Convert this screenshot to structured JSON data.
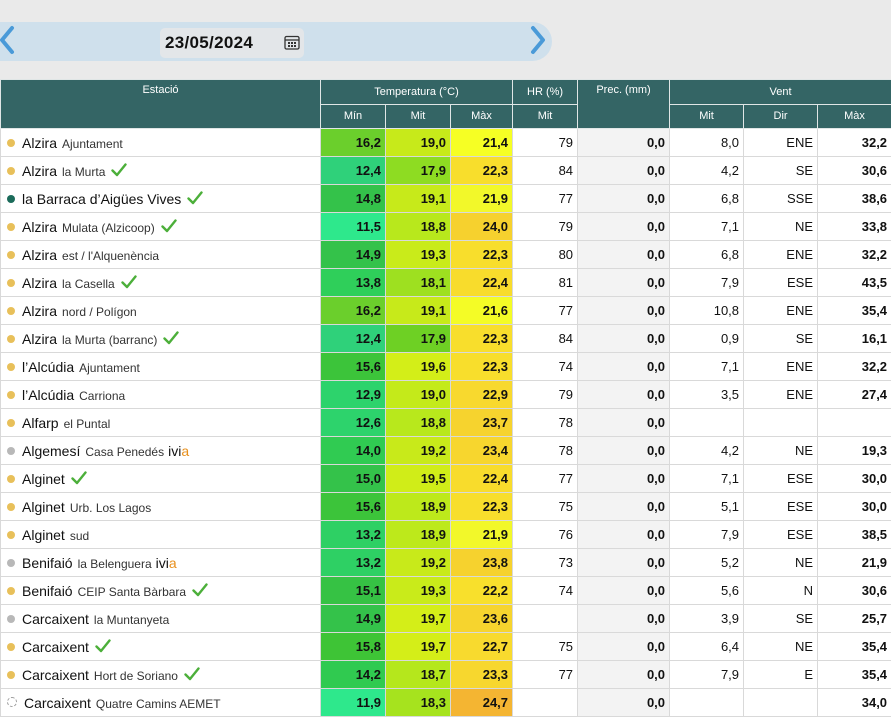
{
  "toolbar": {
    "date": "23/05/2024",
    "prev_icon": "chevron-left-icon",
    "next_icon": "chevron-right-icon",
    "calendar_icon": "calendar-icon"
  },
  "table": {
    "headers_top": {
      "station": "Estació",
      "temperature": "Temperatura (°C)",
      "humidity": "HR (%)",
      "precip": "Prec. (mm)",
      "wind": "Vent"
    },
    "headers_sub": {
      "t_min": "Mín",
      "t_mit": "Mit",
      "t_max": "Màx",
      "hr_mit": "Mit",
      "w_mit": "Mit",
      "w_dir": "Dir",
      "w_max": "Màx"
    },
    "rows": [
      {
        "name": "Alzira",
        "sub": "Ajuntament",
        "dot": "#e8c05a",
        "check": false,
        "ivia": false,
        "tmin": "16,2",
        "tmit": "19,0",
        "tmax": "21,4",
        "hr": "79",
        "prec": "0,0",
        "wmit": "8,0",
        "wdir": "ENE",
        "wmax": "32,2",
        "cmin": "#6bcf2c",
        "cmit": "#c7ea1a",
        "cmax": "#f6ff24"
      },
      {
        "name": "Alzira",
        "sub": "la Murta",
        "dot": "#e8c05a",
        "check": true,
        "ivia": false,
        "tmin": "12,4",
        "tmit": "17,9",
        "tmax": "22,3",
        "hr": "84",
        "prec": "0,0",
        "wmit": "4,2",
        "wdir": "SE",
        "wmax": "30,6",
        "cmin": "#2fd17a",
        "cmit": "#8edc22",
        "cmax": "#f8de2c"
      },
      {
        "name": "la Barraca d’Aigües Vives",
        "sub": "",
        "dot": "#1b6b5a",
        "check": true,
        "ivia": false,
        "tmin": "14,8",
        "tmit": "19,1",
        "tmax": "21,9",
        "hr": "77",
        "prec": "0,0",
        "wmit": "6,8",
        "wdir": "SSE",
        "wmax": "38,6",
        "cmin": "#34c24a",
        "cmit": "#c7ea1a",
        "cmax": "#f2f82a"
      },
      {
        "name": "Alzira",
        "sub": "Mulata (Alzicoop)",
        "dot": "#e8c05a",
        "check": true,
        "ivia": false,
        "tmin": "11,5",
        "tmit": "18,8",
        "tmax": "24,0",
        "hr": "79",
        "prec": "0,0",
        "wmit": "7,1",
        "wdir": "NE",
        "wmax": "33,8",
        "cmin": "#2ee88c",
        "cmit": "#b8e81c",
        "cmax": "#f6d12e"
      },
      {
        "name": "Alzira",
        "sub": "est / l'Alquenència",
        "dot": "#e8c05a",
        "check": false,
        "ivia": false,
        "tmin": "14,9",
        "tmit": "19,3",
        "tmax": "22,3",
        "hr": "80",
        "prec": "0,0",
        "wmit": "6,8",
        "wdir": "ENE",
        "wmax": "32,2",
        "cmin": "#34c24a",
        "cmit": "#c9eb1a",
        "cmax": "#f8de2c"
      },
      {
        "name": "Alzira",
        "sub": "la Casella",
        "dot": "#e8c05a",
        "check": true,
        "ivia": false,
        "tmin": "13,8",
        "tmit": "18,1",
        "tmax": "22,4",
        "hr": "81",
        "prec": "0,0",
        "wmit": "7,9",
        "wdir": "ESE",
        "wmax": "43,5",
        "cmin": "#2fcf5a",
        "cmit": "#9ee020",
        "cmax": "#f8dc2c"
      },
      {
        "name": "Alzira",
        "sub": "nord / Polígon",
        "dot": "#e8c05a",
        "check": false,
        "ivia": false,
        "tmin": "16,2",
        "tmit": "19,1",
        "tmax": "21,6",
        "hr": "77",
        "prec": "0,0",
        "wmit": "10,8",
        "wdir": "ENE",
        "wmax": "35,4",
        "cmin": "#6bcf2c",
        "cmit": "#c7ea1a",
        "cmax": "#f4fc26"
      },
      {
        "name": "Alzira",
        "sub": "la Murta (barranc)",
        "dot": "#e8c05a",
        "check": true,
        "ivia": false,
        "tmin": "12,4",
        "tmit": "17,9",
        "tmax": "22,3",
        "hr": "84",
        "prec": "0,0",
        "wmit": "0,9",
        "wdir": "SE",
        "wmax": "16,1",
        "cmin": "#2fd17a",
        "cmit": "#6ed024",
        "cmax": "#f8de2c"
      },
      {
        "name": "l’Alcúdia",
        "sub": "Ajuntament",
        "dot": "#e8c05a",
        "check": false,
        "ivia": false,
        "tmin": "15,6",
        "tmit": "19,6",
        "tmax": "22,3",
        "hr": "74",
        "prec": "0,0",
        "wmit": "7,1",
        "wdir": "ENE",
        "wmax": "32,2",
        "cmin": "#3cc43a",
        "cmit": "#d3ee18",
        "cmax": "#f8de2c"
      },
      {
        "name": "l’Alcúdia",
        "sub": "Carriona",
        "dot": "#e8c05a",
        "check": false,
        "ivia": false,
        "tmin": "12,9",
        "tmit": "19,0",
        "tmax": "22,9",
        "hr": "79",
        "prec": "0,0",
        "wmit": "3,5",
        "wdir": "ENE",
        "wmax": "27,4",
        "cmin": "#2dd36c",
        "cmit": "#c4ea1a",
        "cmax": "#f8d92e"
      },
      {
        "name": "Alfarp",
        "sub": "el Puntal",
        "dot": "#e8c05a",
        "check": false,
        "ivia": false,
        "tmin": "12,6",
        "tmit": "18,8",
        "tmax": "23,7",
        "hr": "78",
        "prec": "0,0",
        "wmit": "",
        "wdir": "",
        "wmax": "",
        "cmin": "#2dd36c",
        "cmit": "#b8e81c",
        "cmax": "#f6d32e"
      },
      {
        "name": "Algemesí",
        "sub": "Casa Penedés",
        "dot": "#b8b8b8",
        "check": false,
        "ivia": true,
        "tmin": "14,0",
        "tmit": "19,2",
        "tmax": "23,4",
        "hr": "78",
        "prec": "0,0",
        "wmit": "4,2",
        "wdir": "NE",
        "wmax": "19,3",
        "cmin": "#30cb52",
        "cmit": "#c8ea1a",
        "cmax": "#f7d62e"
      },
      {
        "name": "Alginet",
        "sub": "",
        "dot": "#e8c05a",
        "check": true,
        "ivia": false,
        "tmin": "15,0",
        "tmit": "19,5",
        "tmax": "22,4",
        "hr": "77",
        "prec": "0,0",
        "wmit": "7,1",
        "wdir": "ESE",
        "wmax": "30,0",
        "cmin": "#34c24a",
        "cmit": "#d0ed18",
        "cmax": "#f8dc2c"
      },
      {
        "name": "Alginet",
        "sub": "Urb. Los Lagos",
        "dot": "#e8c05a",
        "check": false,
        "ivia": false,
        "tmin": "15,6",
        "tmit": "18,9",
        "tmax": "22,3",
        "hr": "75",
        "prec": "0,0",
        "wmit": "5,1",
        "wdir": "ESE",
        "wmax": "30,0",
        "cmin": "#3cc43a",
        "cmit": "#bde91b",
        "cmax": "#f8de2c"
      },
      {
        "name": "Alginet",
        "sub": "sud",
        "dot": "#e8c05a",
        "check": false,
        "ivia": false,
        "tmin": "13,2",
        "tmit": "18,9",
        "tmax": "21,9",
        "hr": "76",
        "prec": "0,0",
        "wmit": "7,9",
        "wdir": "ESE",
        "wmax": "38,5",
        "cmin": "#2ed064",
        "cmit": "#bde91b",
        "cmax": "#f2f82a"
      },
      {
        "name": "Benifaió",
        "sub": "la Belenguera",
        "dot": "#b8b8b8",
        "check": false,
        "ivia": true,
        "tmin": "13,2",
        "tmit": "19,2",
        "tmax": "23,8",
        "hr": "73",
        "prec": "0,0",
        "wmit": "5,2",
        "wdir": "NE",
        "wmax": "21,9",
        "cmin": "#2ed064",
        "cmit": "#c8ea1a",
        "cmax": "#f6d22e"
      },
      {
        "name": "Benifaió",
        "sub": "CEIP Santa Bàrbara",
        "dot": "#e8c05a",
        "check": true,
        "ivia": false,
        "tmin": "15,1",
        "tmit": "19,3",
        "tmax": "22,2",
        "hr": "74",
        "prec": "0,0",
        "wmit": "5,6",
        "wdir": "N",
        "wmax": "30,6",
        "cmin": "#36c244",
        "cmit": "#c9eb1a",
        "cmax": "#f8e02c"
      },
      {
        "name": "Carcaixent",
        "sub": "la Muntanyeta",
        "dot": "#b8b8b8",
        "check": false,
        "ivia": false,
        "tmin": "14,9",
        "tmit": "19,7",
        "tmax": "23,6",
        "hr": "",
        "prec": "0,0",
        "wmit": "3,9",
        "wdir": "SE",
        "wmax": "25,7",
        "cmin": "#34c24a",
        "cmit": "#d4ee18",
        "cmax": "#f6d42e"
      },
      {
        "name": "Carcaixent",
        "sub": "",
        "dot": "#e8c05a",
        "check": true,
        "ivia": false,
        "tmin": "15,8",
        "tmit": "19,7",
        "tmax": "22,7",
        "hr": "75",
        "prec": "0,0",
        "wmit": "6,4",
        "wdir": "NE",
        "wmax": "35,4",
        "cmin": "#3ec436",
        "cmit": "#d4ee18",
        "cmax": "#f8da2e"
      },
      {
        "name": "Carcaixent",
        "sub": "Hort de Soriano",
        "dot": "#e8c05a",
        "check": true,
        "ivia": false,
        "tmin": "14,2",
        "tmit": "18,7",
        "tmax": "23,3",
        "hr": "77",
        "prec": "0,0",
        "wmit": "7,9",
        "wdir": "E",
        "wmax": "35,4",
        "cmin": "#30ca50",
        "cmit": "#b5e71c",
        "cmax": "#f7d72e"
      },
      {
        "name": "Carcaixent",
        "sub": "Quatre Camins AEMET",
        "dot": "#ffffff",
        "check": false,
        "ivia": false,
        "tmin": "11,9",
        "tmit": "18,3",
        "tmax": "24,7",
        "hr": "",
        "prec": "0,0",
        "wmit": "",
        "wdir": "",
        "wmax": "34,0",
        "cmin": "#2ee88c",
        "cmit": "#a6e31e",
        "cmax": "#f4b532"
      }
    ]
  }
}
